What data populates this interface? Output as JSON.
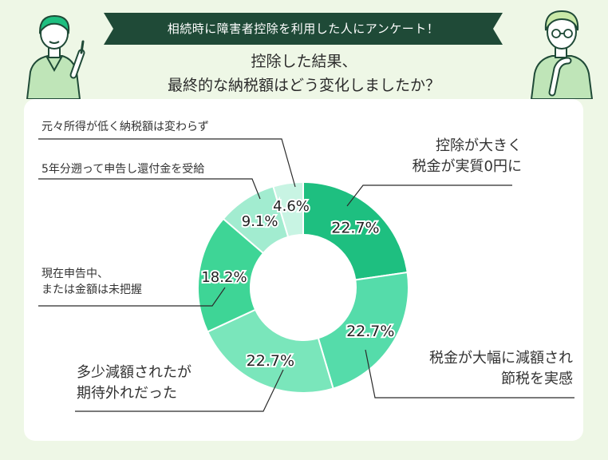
{
  "banner": "相続時に障害者控除を利用した人にアンケート！",
  "question": [
    "控除した結果、",
    "最終的な納税額はどう変化しましたか？"
  ],
  "colors": {
    "banner": "#1f4a37",
    "background": "#eef7e6",
    "slice1": "#1ebf80",
    "slice2": "#3cd092",
    "slice3": "#55dcaa",
    "slice4": "#7ae6bb",
    "slice5": "#3ed596",
    "slice6": "#a2ecd0",
    "slice7": "#c8f4e3"
  },
  "chart_data": {
    "type": "pie",
    "donut": true,
    "slices": [
      {
        "label": [
          "控除が大きく",
          "税金が実質0円に"
        ],
        "value": 22.7,
        "value_label": "22.7%"
      },
      {
        "label": [
          "税金が大幅に減額され",
          "節税を実感"
        ],
        "value": 22.7,
        "value_label": "22.7%"
      },
      {
        "label": [
          "多少減額されたが",
          "期待外れだった"
        ],
        "value": 22.7,
        "value_label": "22.7%"
      },
      {
        "label": [
          "現在申告中、",
          "または金額は未把握"
        ],
        "value": 18.2,
        "value_label": "18.2%"
      },
      {
        "label": [
          "5年分遡って申告し還付金を受給"
        ],
        "value": 9.1,
        "value_label": "9.1%"
      },
      {
        "label": [
          "元々所得が低く納税額は変わらず"
        ],
        "value": 4.6,
        "value_label": "4.6%"
      }
    ]
  }
}
